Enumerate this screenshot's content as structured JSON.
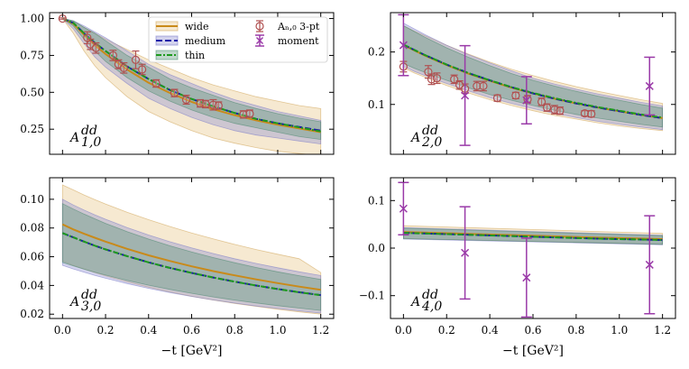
{
  "chart_data": [
    {
      "type": "line",
      "panel_label": "A",
      "panel_sub": "1,0",
      "panel_sup": "dd",
      "xlim": [
        -0.06,
        1.26
      ],
      "ylim": [
        0.08,
        1.04
      ],
      "yticks": [
        0.25,
        0.5,
        0.75,
        1.0
      ],
      "ytick_labels": [
        "0.25",
        "0.50",
        "0.75",
        "1.00"
      ],
      "xticks": [
        0.0,
        0.2,
        0.4,
        0.6,
        0.8,
        1.0,
        1.2
      ],
      "xtick_labels": [],
      "xlabel": "",
      "legend": [
        {
          "label": "wide",
          "style": "wide"
        },
        {
          "label": "medium",
          "style": "medium"
        },
        {
          "label": "thin",
          "style": "thin"
        },
        {
          "label": "Aₙ,₀ 3-pt",
          "style": "circle"
        },
        {
          "label": "moment",
          "style": "cross"
        }
      ],
      "x_curve": [
        0.0,
        0.05,
        0.1,
        0.15,
        0.2,
        0.3,
        0.4,
        0.5,
        0.6,
        0.7,
        0.8,
        0.9,
        1.0,
        1.1,
        1.2
      ],
      "series": [
        {
          "name": "wide",
          "center": [
            1.0,
            0.965,
            0.89,
            0.82,
            0.76,
            0.655,
            0.565,
            0.495,
            0.435,
            0.385,
            0.345,
            0.31,
            0.28,
            0.255,
            0.23
          ],
          "band_low": [
            1.0,
            0.9,
            0.78,
            0.68,
            0.6,
            0.47,
            0.37,
            0.3,
            0.24,
            0.19,
            0.155,
            0.125,
            0.1,
            0.085,
            0.07
          ],
          "band_high": [
            1.0,
            0.98,
            0.94,
            0.9,
            0.86,
            0.79,
            0.72,
            0.66,
            0.6,
            0.55,
            0.51,
            0.47,
            0.44,
            0.41,
            0.39
          ]
        },
        {
          "name": "medium",
          "center": [
            1.0,
            0.97,
            0.9,
            0.835,
            0.78,
            0.675,
            0.59,
            0.515,
            0.455,
            0.405,
            0.36,
            0.32,
            0.29,
            0.265,
            0.24
          ],
          "band_low": [
            1.0,
            0.93,
            0.83,
            0.74,
            0.67,
            0.56,
            0.46,
            0.39,
            0.33,
            0.28,
            0.24,
            0.21,
            0.19,
            0.17,
            0.15
          ],
          "band_high": [
            1.0,
            0.985,
            0.95,
            0.91,
            0.87,
            0.78,
            0.69,
            0.62,
            0.56,
            0.5,
            0.45,
            0.41,
            0.37,
            0.34,
            0.31
          ]
        },
        {
          "name": "thin",
          "center": [
            1.0,
            0.97,
            0.9,
            0.835,
            0.78,
            0.675,
            0.59,
            0.515,
            0.455,
            0.405,
            0.36,
            0.32,
            0.29,
            0.262,
            0.235
          ],
          "band_low": [
            1.0,
            0.95,
            0.86,
            0.78,
            0.71,
            0.6,
            0.51,
            0.44,
            0.38,
            0.33,
            0.29,
            0.26,
            0.23,
            0.2,
            0.18
          ],
          "band_high": [
            1.0,
            0.985,
            0.94,
            0.9,
            0.85,
            0.75,
            0.67,
            0.59,
            0.53,
            0.48,
            0.43,
            0.39,
            0.355,
            0.325,
            0.3
          ]
        }
      ],
      "points_3pt": [
        {
          "x": 0.0,
          "y": 1.0,
          "err": 0.005
        },
        {
          "x": 0.115,
          "y": 0.87,
          "err": 0.04
        },
        {
          "x": 0.13,
          "y": 0.825,
          "err": 0.035
        },
        {
          "x": 0.155,
          "y": 0.8,
          "err": 0.035
        },
        {
          "x": 0.235,
          "y": 0.75,
          "err": 0.035
        },
        {
          "x": 0.26,
          "y": 0.69,
          "err": 0.03
        },
        {
          "x": 0.285,
          "y": 0.665,
          "err": 0.035
        },
        {
          "x": 0.34,
          "y": 0.72,
          "err": 0.06
        },
        {
          "x": 0.37,
          "y": 0.655,
          "err": 0.035
        },
        {
          "x": 0.435,
          "y": 0.56,
          "err": 0.025
        },
        {
          "x": 0.52,
          "y": 0.495,
          "err": 0.025
        },
        {
          "x": 0.575,
          "y": 0.45,
          "err": 0.03
        },
        {
          "x": 0.64,
          "y": 0.425,
          "err": 0.025
        },
        {
          "x": 0.665,
          "y": 0.42,
          "err": 0.025
        },
        {
          "x": 0.7,
          "y": 0.415,
          "err": 0.035
        },
        {
          "x": 0.725,
          "y": 0.41,
          "err": 0.025
        },
        {
          "x": 0.84,
          "y": 0.35,
          "err": 0.025
        },
        {
          "x": 0.87,
          "y": 0.355,
          "err": 0.025
        }
      ],
      "points_moment": []
    },
    {
      "type": "line",
      "panel_label": "A",
      "panel_sub": "2,0",
      "panel_sup": "dd",
      "xlim": [
        -0.06,
        1.26
      ],
      "ylim": [
        0.005,
        0.275
      ],
      "yticks": [
        0.1,
        0.2
      ],
      "ytick_labels": [
        "0.1",
        "0.2"
      ],
      "xticks": [
        0.0,
        0.2,
        0.4,
        0.6,
        0.8,
        1.0,
        1.2
      ],
      "xtick_labels": [],
      "xlabel": "",
      "legend": [],
      "x_curve": [
        0.0,
        0.05,
        0.1,
        0.15,
        0.2,
        0.3,
        0.4,
        0.5,
        0.6,
        0.7,
        0.8,
        0.9,
        1.0,
        1.1,
        1.2
      ],
      "series": [
        {
          "name": "wide",
          "center": [
            0.213,
            0.203,
            0.193,
            0.184,
            0.175,
            0.159,
            0.145,
            0.132,
            0.121,
            0.111,
            0.102,
            0.094,
            0.087,
            0.08,
            0.074
          ],
          "band_low": [
            0.17,
            0.16,
            0.152,
            0.144,
            0.136,
            0.122,
            0.109,
            0.098,
            0.088,
            0.079,
            0.072,
            0.065,
            0.059,
            0.054,
            0.05
          ],
          "band_high": [
            0.25,
            0.24,
            0.231,
            0.222,
            0.213,
            0.196,
            0.181,
            0.167,
            0.155,
            0.144,
            0.134,
            0.125,
            0.117,
            0.109,
            0.102
          ]
        },
        {
          "name": "medium",
          "center": [
            0.214,
            0.204,
            0.194,
            0.185,
            0.176,
            0.16,
            0.146,
            0.133,
            0.121,
            0.111,
            0.102,
            0.094,
            0.087,
            0.08,
            0.074
          ],
          "band_low": [
            0.173,
            0.163,
            0.155,
            0.147,
            0.14,
            0.126,
            0.113,
            0.102,
            0.092,
            0.083,
            0.075,
            0.068,
            0.062,
            0.057,
            0.052
          ],
          "band_high": [
            0.255,
            0.244,
            0.233,
            0.223,
            0.213,
            0.195,
            0.179,
            0.164,
            0.15,
            0.139,
            0.129,
            0.12,
            0.112,
            0.104,
            0.097
          ]
        },
        {
          "name": "thin",
          "center": [
            0.214,
            0.204,
            0.194,
            0.185,
            0.176,
            0.16,
            0.146,
            0.133,
            0.122,
            0.112,
            0.103,
            0.095,
            0.088,
            0.081,
            0.075
          ],
          "band_low": [
            0.178,
            0.169,
            0.161,
            0.153,
            0.146,
            0.132,
            0.119,
            0.108,
            0.098,
            0.089,
            0.081,
            0.074,
            0.068,
            0.062,
            0.057
          ],
          "band_high": [
            0.25,
            0.239,
            0.228,
            0.218,
            0.208,
            0.19,
            0.174,
            0.159,
            0.146,
            0.135,
            0.125,
            0.116,
            0.108,
            0.1,
            0.093
          ]
        }
      ],
      "points_3pt": [
        {
          "x": 0.0,
          "y": 0.172,
          "err": 0.01
        },
        {
          "x": 0.115,
          "y": 0.162,
          "err": 0.012
        },
        {
          "x": 0.13,
          "y": 0.148,
          "err": 0.01
        },
        {
          "x": 0.155,
          "y": 0.15,
          "err": 0.01
        },
        {
          "x": 0.235,
          "y": 0.148,
          "err": 0.008
        },
        {
          "x": 0.26,
          "y": 0.137,
          "err": 0.008
        },
        {
          "x": 0.285,
          "y": 0.13,
          "err": 0.009
        },
        {
          "x": 0.34,
          "y": 0.135,
          "err": 0.009
        },
        {
          "x": 0.37,
          "y": 0.135,
          "err": 0.009
        },
        {
          "x": 0.435,
          "y": 0.112,
          "err": 0.006
        },
        {
          "x": 0.52,
          "y": 0.117,
          "err": 0.006
        },
        {
          "x": 0.575,
          "y": 0.11,
          "err": 0.007
        },
        {
          "x": 0.64,
          "y": 0.105,
          "err": 0.007
        },
        {
          "x": 0.665,
          "y": 0.094,
          "err": 0.007
        },
        {
          "x": 0.7,
          "y": 0.09,
          "err": 0.008
        },
        {
          "x": 0.725,
          "y": 0.088,
          "err": 0.007
        },
        {
          "x": 0.84,
          "y": 0.083,
          "err": 0.005
        },
        {
          "x": 0.87,
          "y": 0.082,
          "err": 0.006
        }
      ],
      "points_moment": [
        {
          "x": 0.0,
          "y": 0.213,
          "err": 0.058
        },
        {
          "x": 0.285,
          "y": 0.117,
          "err": 0.095
        },
        {
          "x": 0.57,
          "y": 0.108,
          "err": 0.045
        },
        {
          "x": 1.14,
          "y": 0.135,
          "err": 0.055
        }
      ]
    },
    {
      "type": "line",
      "panel_label": "A",
      "panel_sub": "3,0",
      "panel_sup": "dd",
      "xlim": [
        -0.06,
        1.26
      ],
      "ylim": [
        0.017,
        0.115
      ],
      "yticks": [
        0.02,
        0.04,
        0.06,
        0.08,
        0.1
      ],
      "ytick_labels": [
        "0.02",
        "0.04",
        "0.06",
        "0.08",
        "0.10"
      ],
      "xticks": [
        0.0,
        0.2,
        0.4,
        0.6,
        0.8,
        1.0,
        1.2
      ],
      "xtick_labels": [
        "0.0",
        "0.2",
        "0.4",
        "0.6",
        "0.8",
        "1.0",
        "1.2"
      ],
      "xlabel": "−t [GeV²]",
      "legend": [],
      "x_curve": [
        0.0,
        0.05,
        0.1,
        0.15,
        0.2,
        0.3,
        0.4,
        0.5,
        0.6,
        0.7,
        0.8,
        0.9,
        1.0,
        1.1,
        1.2
      ],
      "series": [
        {
          "name": "wide",
          "center": [
            0.0825,
            0.079,
            0.076,
            0.0732,
            0.0705,
            0.0655,
            0.061,
            0.057,
            0.0533,
            0.05,
            0.047,
            0.0442,
            0.0416,
            0.0392,
            0.037
          ],
          "band_low": [
            0.057,
            0.054,
            0.0515,
            0.049,
            0.0467,
            0.0425,
            0.0388,
            0.0355,
            0.0325,
            0.0298,
            0.0275,
            0.0254,
            0.0234,
            0.0216,
            0.02
          ],
          "band_high": [
            0.11,
            0.1065,
            0.103,
            0.0998,
            0.0967,
            0.091,
            0.0858,
            0.081,
            0.0765,
            0.0724,
            0.0686,
            0.065,
            0.0617,
            0.0586,
            0.049
          ]
        },
        {
          "name": "medium",
          "center": [
            0.0765,
            0.0735,
            0.0705,
            0.0677,
            0.0651,
            0.0604,
            0.0561,
            0.0522,
            0.0487,
            0.0455,
            0.0426,
            0.0399,
            0.0375,
            0.0353,
            0.0333
          ],
          "band_low": [
            0.054,
            0.0515,
            0.0492,
            0.047,
            0.045,
            0.0413,
            0.038,
            0.035,
            0.0323,
            0.0299,
            0.0277,
            0.0257,
            0.0239,
            0.0223,
            0.0208
          ],
          "band_high": [
            0.1,
            0.096,
            0.0925,
            0.0892,
            0.0861,
            0.0803,
            0.0751,
            0.0704,
            0.0661,
            0.0622,
            0.0586,
            0.0553,
            0.0523,
            0.0495,
            0.0469
          ]
        },
        {
          "name": "thin",
          "center": [
            0.0765,
            0.0735,
            0.0705,
            0.0677,
            0.0651,
            0.0604,
            0.0561,
            0.0522,
            0.0487,
            0.0455,
            0.0426,
            0.0399,
            0.0375,
            0.0352,
            0.0332
          ],
          "band_low": [
            0.056,
            0.0536,
            0.0513,
            0.0492,
            0.0472,
            0.0435,
            0.0402,
            0.0372,
            0.0345,
            0.032,
            0.0298,
            0.0278,
            0.0259,
            0.0242,
            0.0226
          ],
          "band_high": [
            0.097,
            0.0932,
            0.0897,
            0.0864,
            0.0832,
            0.0775,
            0.0723,
            0.0676,
            0.0633,
            0.0594,
            0.0558,
            0.0525,
            0.0495,
            0.0468,
            0.0442
          ]
        }
      ],
      "points_3pt": [],
      "points_moment": []
    },
    {
      "type": "line",
      "panel_label": "A",
      "panel_sub": "4,0",
      "panel_sup": "dd",
      "xlim": [
        -0.06,
        1.26
      ],
      "ylim": [
        -0.148,
        0.148
      ],
      "yticks": [
        -0.1,
        0.0,
        0.1
      ],
      "ytick_labels": [
        "−0.1",
        "0.0",
        "0.1"
      ],
      "xticks": [
        0.0,
        0.2,
        0.4,
        0.6,
        0.8,
        1.0,
        1.2
      ],
      "xtick_labels": [
        "0.0",
        "0.2",
        "0.4",
        "0.6",
        "0.8",
        "1.0",
        "1.2"
      ],
      "xlabel": "−t [GeV²]",
      "legend": [],
      "x_curve": [
        0.0,
        0.3,
        0.6,
        0.9,
        1.2
      ],
      "series": [
        {
          "name": "wide",
          "center": [
            0.034,
            0.03,
            0.026,
            0.022,
            0.019
          ],
          "band_low": [
            0.02,
            0.017,
            0.014,
            0.011,
            0.008
          ],
          "band_high": [
            0.047,
            0.043,
            0.039,
            0.035,
            0.031
          ]
        },
        {
          "name": "medium",
          "center": [
            0.032,
            0.028,
            0.024,
            0.02,
            0.017
          ],
          "band_low": [
            0.019,
            0.016,
            0.013,
            0.01,
            0.007
          ],
          "band_high": [
            0.043,
            0.039,
            0.035,
            0.031,
            0.027
          ]
        },
        {
          "name": "thin",
          "center": [
            0.032,
            0.028,
            0.024,
            0.02,
            0.017
          ],
          "band_low": [
            0.02,
            0.017,
            0.014,
            0.011,
            0.008
          ],
          "band_high": [
            0.042,
            0.038,
            0.034,
            0.03,
            0.026
          ]
        }
      ],
      "points_3pt": [],
      "points_moment": [
        {
          "x": 0.0,
          "y": 0.083,
          "err": 0.055
        },
        {
          "x": 0.285,
          "y": -0.01,
          "err": 0.097
        },
        {
          "x": 0.57,
          "y": -0.062,
          "err": 0.083
        },
        {
          "x": 1.14,
          "y": -0.035,
          "err": 0.103
        }
      ]
    }
  ]
}
